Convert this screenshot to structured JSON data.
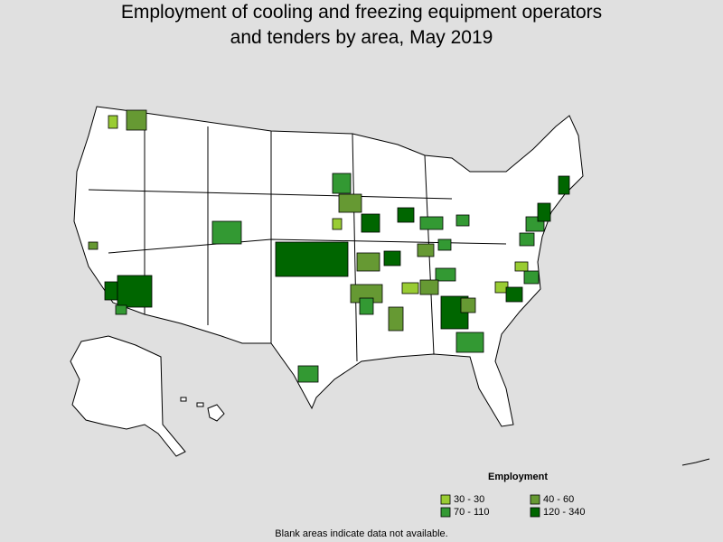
{
  "title": "Employment of cooling and freezing equipment operators and tenders by area, May 2019",
  "legend": {
    "title": "Employment",
    "items": [
      {
        "label": "30 - 30",
        "color": "#99cc33"
      },
      {
        "label": "40 - 60",
        "color": "#669933"
      },
      {
        "label": "70 - 110",
        "color": "#339933"
      },
      {
        "label": "120 - 340",
        "color": "#006600"
      }
    ]
  },
  "note": "Blank areas indicate data not available."
}
